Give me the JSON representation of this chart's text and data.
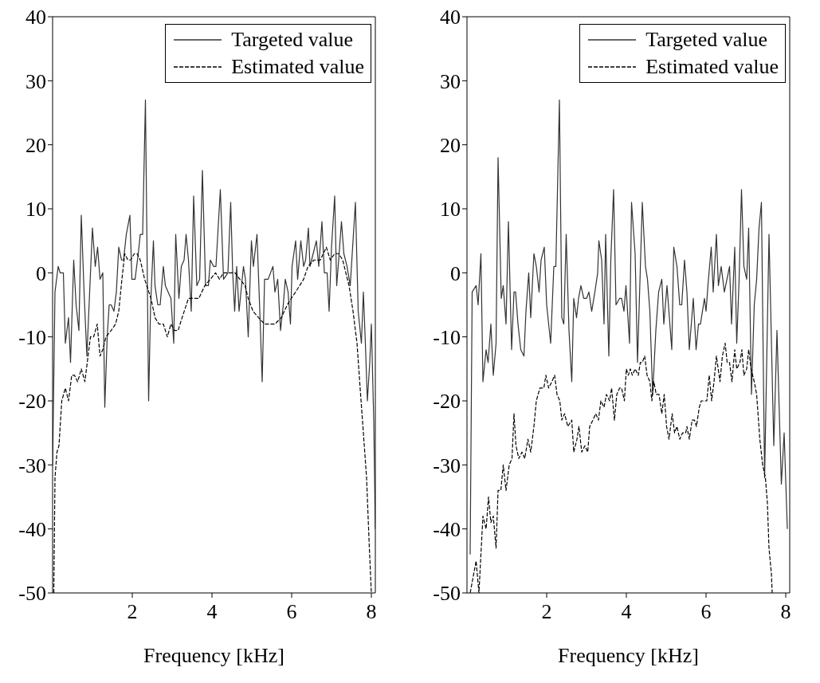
{
  "chart_data": [
    {
      "type": "line",
      "xlabel": "Frequency [kHz]",
      "xlim": [
        0,
        8.1
      ],
      "xticks": [
        2,
        4,
        6,
        8
      ],
      "ylim": [
        -50,
        40
      ],
      "yticks": [
        -50,
        -40,
        -30,
        -20,
        -10,
        0,
        10,
        20,
        30,
        40
      ],
      "grid": false,
      "legend": "top right",
      "series": [
        {
          "name": "Targeted value",
          "color": "#333333",
          "line_style": "solid",
          "x": [
            0,
            0.06,
            0.14,
            0.19,
            0.27,
            0.32,
            0.4,
            0.45,
            0.53,
            0.59,
            0.66,
            0.72,
            0.79,
            0.86,
            0.93,
            1.0,
            1.07,
            1.13,
            1.19,
            1.26,
            1.31,
            1.37,
            1.42,
            1.47,
            1.54,
            1.6,
            1.66,
            1.73,
            1.78,
            1.85,
            1.94,
            1.99,
            2.07,
            2.15,
            2.2,
            2.26,
            2.33,
            2.41,
            2.46,
            2.53,
            2.57,
            2.64,
            2.7,
            2.78,
            2.83,
            2.9,
            2.97,
            3.04,
            3.09,
            3.17,
            3.23,
            3.3,
            3.35,
            3.41,
            3.48,
            3.54,
            3.62,
            3.69,
            3.76,
            3.84,
            3.91,
            3.96,
            4.04,
            4.1,
            4.21,
            4.29,
            4.4,
            4.47,
            4.52,
            4.57,
            4.62,
            4.68,
            4.79,
            4.84,
            4.91,
            4.99,
            5.04,
            5.13,
            5.2,
            5.26,
            5.32,
            5.41,
            5.53,
            5.58,
            5.65,
            5.72,
            5.79,
            5.84,
            5.91,
            5.97,
            6.01,
            6.1,
            6.15,
            6.23,
            6.3,
            6.35,
            6.42,
            6.46,
            6.54,
            6.62,
            6.68,
            6.76,
            6.82,
            6.89,
            6.94,
            7.0,
            7.08,
            7.13,
            7.18,
            7.25,
            7.31,
            7.39,
            7.47,
            7.54,
            7.6,
            7.67,
            7.75,
            7.8,
            7.85,
            7.9,
            7.96,
            8.0,
            8.06,
            8.1
          ],
          "values": [
            -30,
            -3,
            1,
            0,
            0,
            -11,
            -7,
            -14,
            2,
            -5,
            -9,
            9,
            -3,
            -13,
            -3,
            7,
            1,
            4,
            -1,
            0,
            -21,
            -10,
            -5,
            -5,
            -6,
            -3,
            4,
            2,
            2,
            6,
            9,
            -1,
            -1,
            3,
            6,
            6,
            27,
            -20,
            -5,
            5,
            -2,
            -5,
            -5,
            1,
            -2,
            -3,
            -4,
            -11,
            6,
            -4,
            1,
            2,
            6,
            2,
            -6,
            12,
            -2,
            -1,
            16,
            -2,
            -2,
            2,
            1,
            1,
            13,
            -1,
            0,
            11,
            0,
            -6,
            1,
            -6,
            1,
            -1,
            -10,
            5,
            1,
            6,
            -6,
            -17,
            -1,
            -1,
            1,
            -3,
            -1,
            -9,
            -5,
            -1,
            -3,
            -8,
            1,
            5,
            -1,
            5,
            1,
            2,
            7,
            1,
            3,
            5,
            1,
            8,
            0,
            0,
            -6,
            4,
            12,
            -2,
            2,
            8,
            3,
            1,
            -2,
            5,
            11,
            -6,
            -11,
            -3,
            -11,
            -20,
            -14,
            -8,
            -23,
            -40
          ]
        },
        {
          "name": "Estimated value",
          "color": "#000000",
          "line_style": "dashed",
          "x": [
            0.03,
            0.06,
            0.11,
            0.16,
            0.23,
            0.32,
            0.4,
            0.48,
            0.55,
            0.63,
            0.72,
            0.81,
            0.89,
            0.95,
            1.03,
            1.12,
            1.19,
            1.26,
            1.34,
            1.47,
            1.58,
            1.66,
            1.74,
            1.81,
            1.89,
            1.96,
            2.05,
            2.12,
            2.2,
            2.31,
            2.47,
            2.57,
            2.67,
            2.78,
            2.88,
            2.97,
            3.06,
            3.15,
            3.25,
            3.41,
            3.51,
            3.67,
            3.82,
            3.96,
            4.09,
            4.19,
            4.29,
            4.45,
            4.58,
            4.7,
            4.83,
            4.91,
            5.03,
            5.17,
            5.32,
            5.48,
            5.58,
            5.74,
            5.89,
            5.99,
            6.1,
            6.2,
            6.3,
            6.41,
            6.56,
            6.72,
            6.87,
            6.97,
            7.08,
            7.18,
            7.28,
            7.44,
            7.54,
            7.64,
            7.73,
            7.8,
            7.88,
            7.95,
            8.0
          ],
          "values": [
            -50,
            -32,
            -28,
            -27,
            -20,
            -18,
            -20,
            -16,
            -16,
            -17,
            -15,
            -17,
            -13,
            -10,
            -10,
            -8,
            -13,
            -12,
            -10,
            -9,
            -8,
            -6,
            -1,
            3,
            2,
            2,
            3,
            3,
            2,
            -1,
            -4,
            -7,
            -8,
            -8,
            -10,
            -8,
            -9,
            -9,
            -7,
            -4,
            -4,
            -4,
            -2,
            -1,
            0,
            -1,
            0,
            0,
            0,
            -1,
            -2,
            -4,
            -6,
            -7,
            -8,
            -8,
            -8,
            -7,
            -5,
            -4,
            -3,
            -2,
            -1,
            1,
            2,
            2,
            4,
            2,
            3,
            3,
            2,
            -2,
            -6,
            -11,
            -19,
            -25,
            -32,
            -43,
            -50
          ]
        }
      ]
    },
    {
      "type": "line",
      "xlabel": "Frequency [kHz]",
      "xlim": [
        0,
        8.1
      ],
      "xticks": [
        2,
        4,
        6,
        8
      ],
      "ylim": [
        -50,
        40
      ],
      "yticks": [
        -50,
        -40,
        -30,
        -20,
        -10,
        0,
        10,
        20,
        30,
        40
      ],
      "grid": false,
      "legend": "top right",
      "series": [
        {
          "name": "Targeted value",
          "color": "#333333",
          "line_style": "solid",
          "x": [
            0.08,
            0.13,
            0.23,
            0.28,
            0.35,
            0.4,
            0.48,
            0.53,
            0.6,
            0.66,
            0.73,
            0.78,
            0.86,
            0.91,
            0.98,
            1.04,
            1.12,
            1.18,
            1.22,
            1.28,
            1.35,
            1.43,
            1.48,
            1.55,
            1.6,
            1.68,
            1.74,
            1.81,
            1.86,
            1.94,
            2.0,
            2.1,
            2.18,
            2.23,
            2.32,
            2.38,
            2.43,
            2.49,
            2.56,
            2.63,
            2.68,
            2.75,
            2.8,
            2.86,
            2.93,
            3.0,
            3.06,
            3.13,
            3.21,
            3.28,
            3.31,
            3.38,
            3.44,
            3.48,
            3.56,
            3.61,
            3.68,
            3.74,
            3.83,
            3.88,
            3.94,
            3.99,
            4.08,
            4.13,
            4.22,
            4.28,
            4.4,
            4.48,
            4.53,
            4.59,
            4.66,
            4.74,
            4.81,
            4.89,
            4.94,
            5.02,
            5.14,
            5.19,
            5.27,
            5.34,
            5.39,
            5.46,
            5.52,
            5.58,
            5.68,
            5.75,
            5.81,
            5.86,
            5.96,
            6.0,
            6.06,
            6.13,
            6.18,
            6.26,
            6.31,
            6.38,
            6.46,
            6.59,
            6.64,
            6.72,
            6.77,
            6.83,
            6.89,
            6.95,
            7.02,
            7.07,
            7.14,
            7.21,
            7.27,
            7.33,
            7.39,
            7.47,
            7.58,
            7.7,
            7.78,
            7.89,
            7.96,
            8.04
          ],
          "values": [
            -44,
            -3,
            -2,
            -5,
            3,
            -17,
            -12,
            -14,
            -8,
            -16,
            -11,
            18,
            -4,
            -2,
            -8,
            8,
            -12,
            -3,
            -3,
            -8,
            -12,
            -13,
            -6,
            0,
            -7,
            3,
            1,
            -3,
            2,
            4,
            -5,
            -11,
            1,
            1,
            27,
            -7,
            -8,
            6,
            -9,
            -17,
            -4,
            -7,
            -4,
            -2,
            -4,
            -4,
            -3,
            -6,
            -3,
            0,
            5,
            2,
            -8,
            6,
            -13,
            2,
            13,
            -5,
            -4,
            -4,
            -6,
            -2,
            -11,
            11,
            3,
            -14,
            11,
            1,
            -1,
            -6,
            -19,
            -9,
            -3,
            -1,
            -8,
            -2,
            -12,
            4,
            1,
            -5,
            -5,
            2,
            -3,
            -12,
            -4,
            -12,
            -8,
            -8,
            -4,
            -6,
            -1,
            4,
            -3,
            6,
            -2,
            1,
            -3,
            1,
            -8,
            4,
            -11,
            -1,
            13,
            1,
            -1,
            7,
            -19,
            -5,
            -1,
            7,
            11,
            -32,
            6,
            -27,
            -9,
            -33,
            -25,
            -40
          ]
        },
        {
          "name": "Estimated value",
          "color": "#000000",
          "line_style": "dashed",
          "x": [
            0.08,
            0.23,
            0.3,
            0.4,
            0.48,
            0.54,
            0.6,
            0.66,
            0.73,
            0.78,
            0.85,
            0.91,
            0.98,
            1.06,
            1.13,
            1.18,
            1.23,
            1.3,
            1.38,
            1.45,
            1.53,
            1.6,
            1.68,
            1.74,
            1.83,
            1.93,
            1.98,
            2.05,
            2.13,
            2.2,
            2.26,
            2.33,
            2.38,
            2.45,
            2.53,
            2.63,
            2.68,
            2.76,
            2.81,
            2.88,
            2.96,
            3.03,
            3.08,
            3.16,
            3.23,
            3.3,
            3.36,
            3.44,
            3.5,
            3.58,
            3.63,
            3.7,
            3.76,
            3.83,
            3.88,
            3.95,
            4.0,
            4.05,
            4.1,
            4.15,
            4.22,
            4.3,
            4.35,
            4.4,
            4.46,
            4.52,
            4.59,
            4.64,
            4.69,
            4.75,
            4.82,
            4.89,
            4.95,
            5.01,
            5.07,
            5.15,
            5.21,
            5.27,
            5.34,
            5.41,
            5.49,
            5.52,
            5.58,
            5.65,
            5.71,
            5.76,
            5.83,
            5.88,
            5.96,
            6.02,
            6.08,
            6.14,
            6.2,
            6.26,
            6.35,
            6.41,
            6.48,
            6.53,
            6.59,
            6.65,
            6.72,
            6.77,
            6.85,
            6.9,
            6.95,
            7.02,
            7.07,
            7.13,
            7.21,
            7.27,
            7.35,
            7.42,
            7.49,
            7.54,
            7.58,
            7.64,
            7.66
          ],
          "values": [
            -50,
            -45,
            -50,
            -38,
            -40,
            -35,
            -39,
            -38,
            -43,
            -34,
            -34,
            -30,
            -34,
            -30,
            -29,
            -22,
            -27,
            -29,
            -28,
            -29,
            -26,
            -28,
            -24,
            -20,
            -18,
            -18,
            -16,
            -18,
            -17,
            -16,
            -19,
            -20,
            -23,
            -22,
            -24,
            -23,
            -28,
            -26,
            -24,
            -28,
            -27,
            -28,
            -24,
            -23,
            -22,
            -23,
            -20,
            -21,
            -19,
            -20,
            -18,
            -23,
            -19,
            -18,
            -18,
            -20,
            -15,
            -16,
            -15,
            -16,
            -15,
            -16,
            -14,
            -14,
            -13,
            -16,
            -17,
            -20,
            -17,
            -19,
            -19,
            -22,
            -19,
            -24,
            -26,
            -22,
            -25,
            -24,
            -26,
            -25,
            -25,
            -24,
            -26,
            -23,
            -23,
            -24,
            -21,
            -20,
            -20,
            -20,
            -16,
            -20,
            -17,
            -13,
            -17,
            -13,
            -11,
            -14,
            -14,
            -17,
            -12,
            -15,
            -14,
            -12,
            -16,
            -15,
            -12,
            -15,
            -17,
            -19,
            -26,
            -30,
            -32,
            -36,
            -43,
            -47,
            -50
          ]
        }
      ]
    }
  ]
}
